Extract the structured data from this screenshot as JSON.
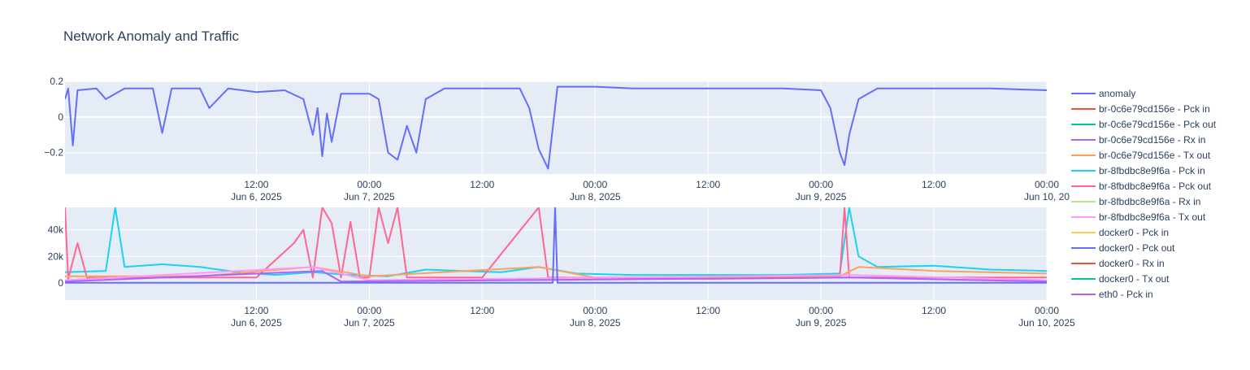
{
  "chart_data": [
    {
      "type": "line",
      "title": "Network Anomaly and Traffic",
      "xlabel": "",
      "ylabel": "",
      "x_range": [
        "2025-06-05T15:40",
        "2025-06-10T00:00"
      ],
      "ylim": [
        -0.32,
        0.2
      ],
      "yticks": [
        {
          "value": 0.2,
          "label": "0.2"
        },
        {
          "value": 0,
          "label": "0"
        },
        {
          "value": -0.2,
          "label": "−0.2"
        }
      ],
      "xticks": [
        {
          "t": "2025-06-06T12:00",
          "line1": "12:00",
          "line2": "Jun 6, 2025"
        },
        {
          "t": "2025-06-07T00:00",
          "line1": "00:00",
          "line2": "Jun 7, 2025"
        },
        {
          "t": "2025-06-07T12:00",
          "line1": "12:00",
          "line2": ""
        },
        {
          "t": "2025-06-08T00:00",
          "line1": "00:00",
          "line2": "Jun 8, 2025"
        },
        {
          "t": "2025-06-08T12:00",
          "line1": "12:00",
          "line2": ""
        },
        {
          "t": "2025-06-09T00:00",
          "line1": "00:00",
          "line2": "Jun 9, 2025"
        },
        {
          "t": "2025-06-09T12:00",
          "line1": "12:00",
          "line2": ""
        },
        {
          "t": "2025-06-10T00:00",
          "line1": "00:00",
          "line2": "Jun 10, 20"
        }
      ],
      "series": [
        {
          "name": "anomaly",
          "color": "#636efa",
          "points": [
            [
              "2025-06-05T15:40",
              0.1
            ],
            [
              "2025-06-05T16:00",
              0.16
            ],
            [
              "2025-06-05T16:30",
              -0.16
            ],
            [
              "2025-06-05T17:00",
              0.15
            ],
            [
              "2025-06-05T19:00",
              0.16
            ],
            [
              "2025-06-05T20:00",
              0.1
            ],
            [
              "2025-06-05T22:00",
              0.16
            ],
            [
              "2025-06-06T01:00",
              0.16
            ],
            [
              "2025-06-06T02:00",
              -0.09
            ],
            [
              "2025-06-06T03:00",
              0.16
            ],
            [
              "2025-06-06T06:00",
              0.16
            ],
            [
              "2025-06-06T07:00",
              0.05
            ],
            [
              "2025-06-06T09:00",
              0.16
            ],
            [
              "2025-06-06T12:00",
              0.14
            ],
            [
              "2025-06-06T15:00",
              0.15
            ],
            [
              "2025-06-06T17:00",
              0.1
            ],
            [
              "2025-06-06T18:00",
              -0.1
            ],
            [
              "2025-06-06T18:30",
              0.05
            ],
            [
              "2025-06-06T19:00",
              -0.22
            ],
            [
              "2025-06-06T19:30",
              0.02
            ],
            [
              "2025-06-06T20:00",
              -0.14
            ],
            [
              "2025-06-06T21:00",
              0.13
            ],
            [
              "2025-06-06T22:00",
              0.13
            ],
            [
              "2025-06-07T00:00",
              0.13
            ],
            [
              "2025-06-07T01:00",
              0.1
            ],
            [
              "2025-06-07T02:00",
              -0.2
            ],
            [
              "2025-06-07T03:00",
              -0.24
            ],
            [
              "2025-06-07T04:00",
              -0.05
            ],
            [
              "2025-06-07T05:00",
              -0.2
            ],
            [
              "2025-06-07T06:00",
              0.1
            ],
            [
              "2025-06-07T08:00",
              0.16
            ],
            [
              "2025-06-07T12:00",
              0.16
            ],
            [
              "2025-06-07T16:00",
              0.16
            ],
            [
              "2025-06-07T17:00",
              0.05
            ],
            [
              "2025-06-07T18:00",
              -0.18
            ],
            [
              "2025-06-07T19:00",
              -0.29
            ],
            [
              "2025-06-07T20:00",
              0.17
            ],
            [
              "2025-06-08T00:00",
              0.17
            ],
            [
              "2025-06-08T04:00",
              0.16
            ],
            [
              "2025-06-08T08:00",
              0.16
            ],
            [
              "2025-06-08T12:00",
              0.16
            ],
            [
              "2025-06-08T16:00",
              0.16
            ],
            [
              "2025-06-08T20:00",
              0.16
            ],
            [
              "2025-06-09T00:00",
              0.15
            ],
            [
              "2025-06-09T01:00",
              0.05
            ],
            [
              "2025-06-09T02:00",
              -0.2
            ],
            [
              "2025-06-09T02:30",
              -0.27
            ],
            [
              "2025-06-09T03:00",
              -0.1
            ],
            [
              "2025-06-09T04:00",
              0.1
            ],
            [
              "2025-06-09T06:00",
              0.16
            ],
            [
              "2025-06-09T12:00",
              0.16
            ],
            [
              "2025-06-09T18:00",
              0.16
            ],
            [
              "2025-06-10T00:00",
              0.15
            ]
          ]
        }
      ]
    },
    {
      "type": "line",
      "title": "",
      "xlabel": "",
      "ylabel": "",
      "x_range": [
        "2025-06-05T15:40",
        "2025-06-10T00:00"
      ],
      "ylim": [
        -13000,
        57000
      ],
      "yticks": [
        {
          "value": 40000,
          "label": "40k"
        },
        {
          "value": 20000,
          "label": "20k"
        },
        {
          "value": 0,
          "label": "0"
        }
      ],
      "xticks": [
        {
          "t": "2025-06-06T12:00",
          "line1": "12:00",
          "line2": "Jun 6, 2025"
        },
        {
          "t": "2025-06-07T00:00",
          "line1": "00:00",
          "line2": "Jun 7, 2025"
        },
        {
          "t": "2025-06-07T12:00",
          "line1": "12:00",
          "line2": ""
        },
        {
          "t": "2025-06-08T00:00",
          "line1": "00:00",
          "line2": "Jun 8, 2025"
        },
        {
          "t": "2025-06-08T12:00",
          "line1": "12:00",
          "line2": ""
        },
        {
          "t": "2025-06-09T00:00",
          "line1": "00:00",
          "line2": "Jun 9, 2025"
        },
        {
          "t": "2025-06-09T12:00",
          "line1": "12:00",
          "line2": ""
        },
        {
          "t": "2025-06-10T00:00",
          "line1": "00:00",
          "line2": "Jun 10, 2025"
        }
      ],
      "series": [
        {
          "name": "br-8fbdbc8e9f6a -  Pck in",
          "color": "#19d3f3",
          "points": [
            [
              "2025-06-05T15:40",
              8000
            ],
            [
              "2025-06-05T20:00",
              9000
            ],
            [
              "2025-06-05T21:00",
              57000
            ],
            [
              "2025-06-05T22:00",
              12000
            ],
            [
              "2025-06-06T02:00",
              14000
            ],
            [
              "2025-06-06T06:00",
              12000
            ],
            [
              "2025-06-06T10:00",
              8000
            ],
            [
              "2025-06-06T14:00",
              6000
            ],
            [
              "2025-06-06T18:00",
              8000
            ],
            [
              "2025-06-06T22:00",
              6000
            ],
            [
              "2025-06-07T02:00",
              5000
            ],
            [
              "2025-06-07T06:00",
              10000
            ],
            [
              "2025-06-07T10:00",
              9000
            ],
            [
              "2025-06-07T14:00",
              8000
            ],
            [
              "2025-06-07T18:00",
              12000
            ],
            [
              "2025-06-07T22:00",
              7000
            ],
            [
              "2025-06-08T04:00",
              6000
            ],
            [
              "2025-06-08T12:00",
              6000
            ],
            [
              "2025-06-08T20:00",
              6000
            ],
            [
              "2025-06-09T02:00",
              7000
            ],
            [
              "2025-06-09T03:00",
              57000
            ],
            [
              "2025-06-09T04:00",
              20000
            ],
            [
              "2025-06-09T06:00",
              12000
            ],
            [
              "2025-06-09T12:00",
              13000
            ],
            [
              "2025-06-09T18:00",
              10000
            ],
            [
              "2025-06-10T00:00",
              9000
            ]
          ]
        },
        {
          "name": "br-8fbdbc8e9f6a -  Pck out",
          "color": "#ff6692",
          "points": [
            [
              "2025-06-05T15:40",
              57000
            ],
            [
              "2025-06-05T16:00",
              3000
            ],
            [
              "2025-06-05T17:00",
              30000
            ],
            [
              "2025-06-05T18:00",
              4000
            ],
            [
              "2025-06-06T12:00",
              4000
            ],
            [
              "2025-06-06T16:00",
              30000
            ],
            [
              "2025-06-06T17:00",
              40000
            ],
            [
              "2025-06-06T18:00",
              4000
            ],
            [
              "2025-06-06T19:00",
              57000
            ],
            [
              "2025-06-06T20:00",
              45000
            ],
            [
              "2025-06-06T21:00",
              4000
            ],
            [
              "2025-06-06T22:00",
              46000
            ],
            [
              "2025-06-06T23:00",
              4000
            ],
            [
              "2025-06-07T00:00",
              4000
            ],
            [
              "2025-06-07T01:00",
              57000
            ],
            [
              "2025-06-07T02:00",
              30000
            ],
            [
              "2025-06-07T03:00",
              57000
            ],
            [
              "2025-06-07T04:00",
              4000
            ],
            [
              "2025-06-07T12:00",
              4000
            ],
            [
              "2025-06-07T18:00",
              57000
            ],
            [
              "2025-06-07T19:00",
              4000
            ],
            [
              "2025-06-08T12:00",
              3000
            ],
            [
              "2025-06-09T02:00",
              4000
            ],
            [
              "2025-06-09T02:30",
              57000
            ],
            [
              "2025-06-09T03:00",
              4000
            ],
            [
              "2025-06-10T00:00",
              4000
            ]
          ]
        },
        {
          "name": "br-0c6e79cd156e - Tx out",
          "color": "#ffa15a",
          "points": [
            [
              "2025-06-05T15:40",
              5000
            ],
            [
              "2025-06-06T06:00",
              5000
            ],
            [
              "2025-06-06T18:00",
              12000
            ],
            [
              "2025-06-07T00:00",
              5000
            ],
            [
              "2025-06-07T18:00",
              12000
            ],
            [
              "2025-06-08T00:00",
              4000
            ],
            [
              "2025-06-09T02:00",
              5000
            ],
            [
              "2025-06-09T04:00",
              12000
            ],
            [
              "2025-06-09T12:00",
              9000
            ],
            [
              "2025-06-10T00:00",
              7000
            ]
          ]
        },
        {
          "name": "br-8fbdbc8e9f6a - Tx out",
          "color": "#ff97ff",
          "points": [
            [
              "2025-06-05T15:40",
              2000
            ],
            [
              "2025-06-06T18:00",
              12000
            ],
            [
              "2025-06-07T00:00",
              2000
            ],
            [
              "2025-06-09T03:00",
              6000
            ],
            [
              "2025-06-10T00:00",
              2000
            ]
          ]
        },
        {
          "name": "eth0 -  Pck in",
          "color": "#ab63fa",
          "points": [
            [
              "2025-06-05T15:40",
              1000
            ],
            [
              "2025-06-06T19:00",
              9000
            ],
            [
              "2025-06-06T21:00",
              1000
            ],
            [
              "2025-06-09T03:00",
              4000
            ],
            [
              "2025-06-10T00:00",
              1000
            ]
          ]
        },
        {
          "name": "docker0 -  Pck out",
          "color": "#636efa",
          "points": [
            [
              "2025-06-05T15:40",
              0
            ],
            [
              "2025-06-07T19:30",
              0
            ],
            [
              "2025-06-07T19:45",
              57000
            ],
            [
              "2025-06-07T20:00",
              0
            ],
            [
              "2025-06-10T00:00",
              0
            ]
          ]
        }
      ]
    }
  ],
  "legend": {
    "items": [
      {
        "label": "anomaly",
        "color": "#636efa"
      },
      {
        "label": "br-0c6e79cd156e -  Pck in",
        "color": "#ef553b"
      },
      {
        "label": "br-0c6e79cd156e -  Pck out",
        "color": "#00cc96"
      },
      {
        "label": "br-0c6e79cd156e - Rx in",
        "color": "#ab63fa"
      },
      {
        "label": "br-0c6e79cd156e - Tx out",
        "color": "#ffa15a"
      },
      {
        "label": "br-8fbdbc8e9f6a -  Pck in",
        "color": "#19d3f3"
      },
      {
        "label": "br-8fbdbc8e9f6a -  Pck out",
        "color": "#ff6692"
      },
      {
        "label": "br-8fbdbc8e9f6a - Rx in",
        "color": "#b6e880"
      },
      {
        "label": "br-8fbdbc8e9f6a - Tx out",
        "color": "#ff97ff"
      },
      {
        "label": "docker0 -  Pck in",
        "color": "#fecb52"
      },
      {
        "label": "docker0 -  Pck out",
        "color": "#636efa"
      },
      {
        "label": "docker0 - Rx in",
        "color": "#ef553b"
      },
      {
        "label": "docker0 - Tx out",
        "color": "#00cc96"
      },
      {
        "label": "eth0 -  Pck in",
        "color": "#ab63fa"
      }
    ]
  }
}
